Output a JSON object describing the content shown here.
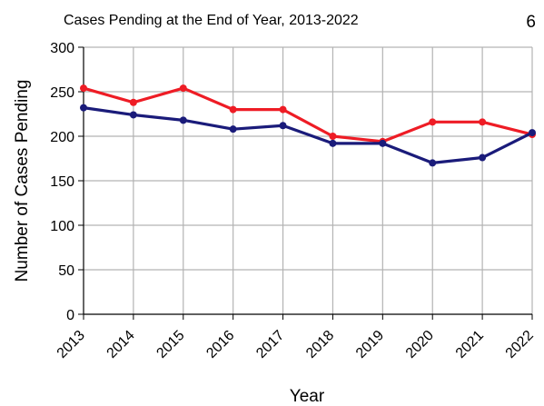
{
  "page_number": "6",
  "chart_data": {
    "type": "line",
    "title": "Cases Pending at the End of Year, 2013-2022",
    "xlabel": "Year",
    "ylabel": "Number of Cases Pending",
    "categories": [
      "2013",
      "2014",
      "2015",
      "2016",
      "2017",
      "2018",
      "2019",
      "2020",
      "2021",
      "2022"
    ],
    "ylim": [
      0,
      300
    ],
    "yticks": [
      0,
      50,
      100,
      150,
      200,
      250,
      300
    ],
    "grid": true,
    "legend": "none",
    "series": [
      {
        "color": "#ee1c25",
        "values": [
          254,
          238,
          254,
          230,
          230,
          200,
          194,
          216,
          216,
          202
        ]
      },
      {
        "color": "#1a1b7a",
        "values": [
          232,
          224,
          218,
          208,
          212,
          192,
          192,
          170,
          176,
          204
        ]
      }
    ]
  }
}
